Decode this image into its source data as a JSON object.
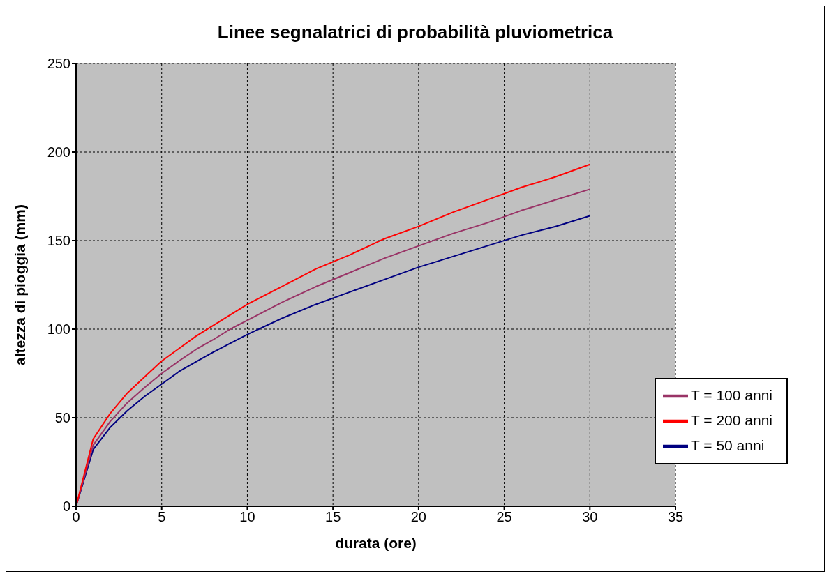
{
  "chart_data": {
    "type": "line",
    "title": "Linee segnalatrici di probabilità pluviometrica",
    "xlabel": "durata (ore)",
    "ylabel": "altezza di pioggia (mm)",
    "x": [
      0,
      1,
      2,
      3,
      4,
      5,
      6,
      7,
      8,
      9,
      10,
      12,
      14,
      16,
      18,
      20,
      22,
      24,
      26,
      28,
      30
    ],
    "series": [
      {
        "name": "T = 50 anni",
        "color": "#000080",
        "values": [
          0,
          32,
          44.6,
          54,
          62,
          69,
          76,
          81.5,
          87,
          92,
          97,
          106,
          114,
          121,
          128,
          135,
          141,
          147,
          153,
          158,
          164
        ]
      },
      {
        "name": "T = 100 anni",
        "color": "#993366",
        "values": [
          0,
          34.5,
          48,
          58.5,
          67,
          75,
          82,
          88.5,
          94,
          100,
          105,
          115,
          124,
          132,
          140,
          147,
          154,
          160,
          167,
          173,
          179
        ]
      },
      {
        "name": "T = 200 anni",
        "color": "#ff0000",
        "values": [
          0,
          38,
          52.5,
          64,
          73,
          82,
          89,
          96,
          102,
          108,
          114,
          124,
          134,
          142,
          151,
          158,
          166,
          173,
          180,
          186,
          193
        ]
      }
    ],
    "xlim": [
      0,
      35
    ],
    "xticks": [
      0,
      5,
      10,
      15,
      20,
      25,
      30,
      35
    ],
    "ylim": [
      0,
      250
    ],
    "yticks": [
      0,
      50,
      100,
      150,
      200,
      250
    ],
    "grid": true,
    "legend": "bottom right",
    "marker": "none",
    "line_style": "solid"
  }
}
